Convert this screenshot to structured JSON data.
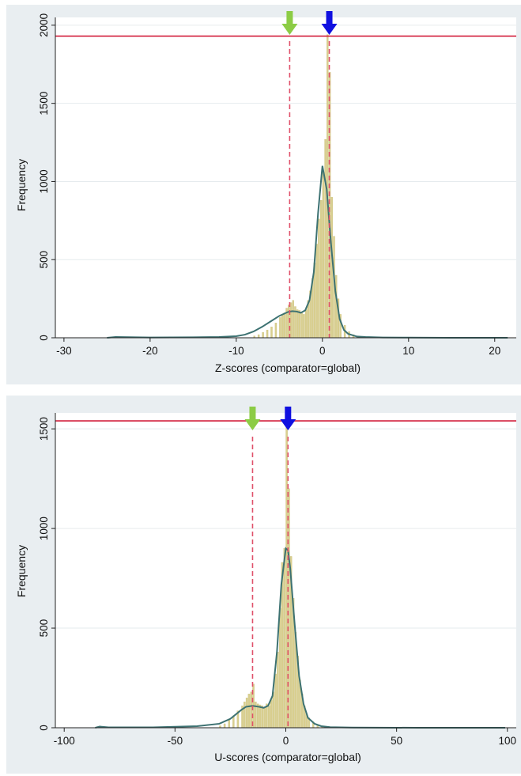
{
  "chart_data": [
    {
      "type": "bar",
      "xlabel": "Z-scores (comparator=global)",
      "ylabel": "Frequency",
      "xlim": [
        -31,
        22.5
      ],
      "ylim": [
        0,
        2050
      ],
      "xticks": [
        -30,
        -20,
        -10,
        0,
        10,
        20
      ],
      "yticks": [
        0,
        500,
        1000,
        1500,
        2000
      ],
      "grid": true,
      "colors": {
        "bars": "#d9cf8f",
        "density": "#3d7272",
        "reference_line": "#d21f3c",
        "green_arrow": "#8ccc45",
        "blue_arrow": "#1010e0"
      },
      "reference_line_y": 1930,
      "marker_lines": [
        {
          "x": -3.8,
          "color": "green",
          "arrow_color": "#8ccc45"
        },
        {
          "x": 0.8,
          "color": "blue",
          "arrow_color": "#1010e0"
        }
      ],
      "histogram": {
        "bin_width": 0.25,
        "bars": [
          {
            "x": -8.0,
            "y": 12
          },
          {
            "x": -7.5,
            "y": 20
          },
          {
            "x": -7.0,
            "y": 35
          },
          {
            "x": -6.5,
            "y": 50
          },
          {
            "x": -6.0,
            "y": 70
          },
          {
            "x": -5.5,
            "y": 95
          },
          {
            "x": -5.0,
            "y": 130
          },
          {
            "x": -4.75,
            "y": 145
          },
          {
            "x": -4.5,
            "y": 160
          },
          {
            "x": -4.25,
            "y": 190
          },
          {
            "x": -4.0,
            "y": 210
          },
          {
            "x": -3.75,
            "y": 225
          },
          {
            "x": -3.5,
            "y": 240
          },
          {
            "x": -3.25,
            "y": 200
          },
          {
            "x": -3.0,
            "y": 180
          },
          {
            "x": -2.75,
            "y": 175
          },
          {
            "x": -2.5,
            "y": 160
          },
          {
            "x": -2.25,
            "y": 150
          },
          {
            "x": -2.0,
            "y": 180
          },
          {
            "x": -1.75,
            "y": 240
          },
          {
            "x": -1.5,
            "y": 300
          },
          {
            "x": -1.25,
            "y": 380
          },
          {
            "x": -1.0,
            "y": 480
          },
          {
            "x": -0.75,
            "y": 600
          },
          {
            "x": -0.5,
            "y": 760
          },
          {
            "x": -0.25,
            "y": 880
          },
          {
            "x": 0.0,
            "y": 1060
          },
          {
            "x": 0.25,
            "y": 1270
          },
          {
            "x": 0.5,
            "y": 1940
          },
          {
            "x": 0.75,
            "y": 1700
          },
          {
            "x": 1.0,
            "y": 900
          },
          {
            "x": 1.25,
            "y": 650
          },
          {
            "x": 1.5,
            "y": 400
          },
          {
            "x": 1.75,
            "y": 250
          },
          {
            "x": 2.0,
            "y": 150
          },
          {
            "x": 2.5,
            "y": 80
          },
          {
            "x": 3.0,
            "y": 40
          },
          {
            "x": 3.5,
            "y": 20
          },
          {
            "x": 4.0,
            "y": 10
          }
        ]
      },
      "density": {
        "x": [
          -25,
          -24,
          -20,
          -15,
          -12,
          -10,
          -9,
          -8,
          -7,
          -6,
          -5,
          -4,
          -3.5,
          -3,
          -2.5,
          -2,
          -1.5,
          -1,
          -0.5,
          0,
          0.5,
          1,
          1.5,
          2,
          2.5,
          3,
          4,
          5,
          7,
          10,
          15,
          20,
          21.5
        ],
        "y": [
          0,
          5,
          2,
          3,
          5,
          10,
          20,
          40,
          70,
          105,
          140,
          165,
          170,
          168,
          160,
          175,
          240,
          420,
          800,
          1100,
          950,
          600,
          300,
          120,
          50,
          25,
          8,
          5,
          2,
          1,
          0,
          0,
          0
        ]
      }
    },
    {
      "type": "bar",
      "xlabel": "U-scores (comparator=global)",
      "ylabel": "Frequency",
      "xlim": [
        -104,
        104
      ],
      "ylim": [
        0,
        1580
      ],
      "xticks": [
        -100,
        -50,
        0,
        50,
        100
      ],
      "yticks": [
        0,
        500,
        1000,
        1500
      ],
      "grid": true,
      "colors": {
        "bars": "#d9cf8f",
        "density": "#3d7272",
        "reference_line": "#d21f3c",
        "green_arrow": "#8ccc45",
        "blue_arrow": "#1010e0"
      },
      "reference_line_y": 1540,
      "marker_lines": [
        {
          "x": -15,
          "color": "green",
          "arrow_color": "#8ccc45"
        },
        {
          "x": 1,
          "color": "blue",
          "arrow_color": "#1010e0"
        }
      ],
      "histogram": {
        "bin_width": 1,
        "bars": [
          {
            "x": -30,
            "y": 10
          },
          {
            "x": -28,
            "y": 20
          },
          {
            "x": -26,
            "y": 40
          },
          {
            "x": -24,
            "y": 60
          },
          {
            "x": -22,
            "y": 85
          },
          {
            "x": -20,
            "y": 110
          },
          {
            "x": -19,
            "y": 130
          },
          {
            "x": -18,
            "y": 150
          },
          {
            "x": -17,
            "y": 170
          },
          {
            "x": -16,
            "y": 180
          },
          {
            "x": -15,
            "y": 220
          },
          {
            "x": -14,
            "y": 130
          },
          {
            "x": -13,
            "y": 120
          },
          {
            "x": -12,
            "y": 115
          },
          {
            "x": -11,
            "y": 110
          },
          {
            "x": -10,
            "y": 100
          },
          {
            "x": -9,
            "y": 120
          },
          {
            "x": -8,
            "y": 110
          },
          {
            "x": -7,
            "y": 140
          },
          {
            "x": -6,
            "y": 180
          },
          {
            "x": -5,
            "y": 270
          },
          {
            "x": -4,
            "y": 380
          },
          {
            "x": -3,
            "y": 600
          },
          {
            "x": -2,
            "y": 830
          },
          {
            "x": -1,
            "y": 900
          },
          {
            "x": 0,
            "y": 1520
          },
          {
            "x": 1,
            "y": 1200
          },
          {
            "x": 2,
            "y": 860
          },
          {
            "x": 3,
            "y": 650
          },
          {
            "x": 4,
            "y": 480
          },
          {
            "x": 5,
            "y": 360
          },
          {
            "x": 6,
            "y": 240
          },
          {
            "x": 7,
            "y": 170
          },
          {
            "x": 8,
            "y": 110
          },
          {
            "x": 9,
            "y": 70
          },
          {
            "x": 10,
            "y": 50
          },
          {
            "x": 12,
            "y": 30
          },
          {
            "x": 14,
            "y": 15
          },
          {
            "x": 16,
            "y": 8
          }
        ]
      },
      "density": {
        "x": [
          -86,
          -84,
          -80,
          -60,
          -40,
          -30,
          -25,
          -20,
          -18,
          -15,
          -12,
          -10,
          -8,
          -6,
          -4,
          -2,
          0,
          1,
          2,
          4,
          6,
          8,
          10,
          13,
          16,
          20,
          30,
          60,
          99
        ],
        "y": [
          0,
          6,
          2,
          2,
          8,
          20,
          45,
          90,
          105,
          110,
          105,
          100,
          110,
          160,
          380,
          720,
          900,
          890,
          800,
          520,
          260,
          120,
          50,
          20,
          8,
          3,
          1,
          0,
          0
        ]
      }
    }
  ]
}
